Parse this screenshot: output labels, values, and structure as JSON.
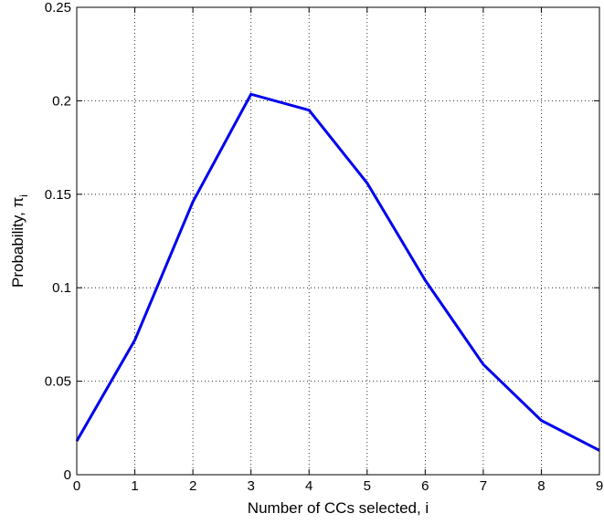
{
  "chart_data": {
    "type": "line",
    "title": "",
    "xlabel": "Number of CCs selected, i",
    "ylabel": {
      "text": "Probability, π",
      "subscript": "i"
    },
    "xlim": [
      0,
      9
    ],
    "ylim": [
      0,
      0.25
    ],
    "xticks": [
      0,
      1,
      2,
      3,
      4,
      5,
      6,
      7,
      8,
      9
    ],
    "xtick_labels": [
      "0",
      "1",
      "2",
      "3",
      "4",
      "5",
      "6",
      "7",
      "8",
      "9"
    ],
    "yticks": [
      0,
      0.05,
      0.1,
      0.15,
      0.2,
      0.25
    ],
    "ytick_labels": [
      "0",
      "0.05",
      "0.1",
      "0.15",
      "0.2",
      "0.25"
    ],
    "grid": true,
    "grid_style": "dotted",
    "legend": null,
    "series": [
      {
        "color": "#0000ee",
        "x": [
          0,
          1,
          2,
          3,
          4,
          5,
          6,
          7,
          8,
          9
        ],
        "y": [
          0.018,
          0.072,
          0.146,
          0.2035,
          0.195,
          0.156,
          0.104,
          0.059,
          0.029,
          0.013
        ]
      }
    ]
  }
}
